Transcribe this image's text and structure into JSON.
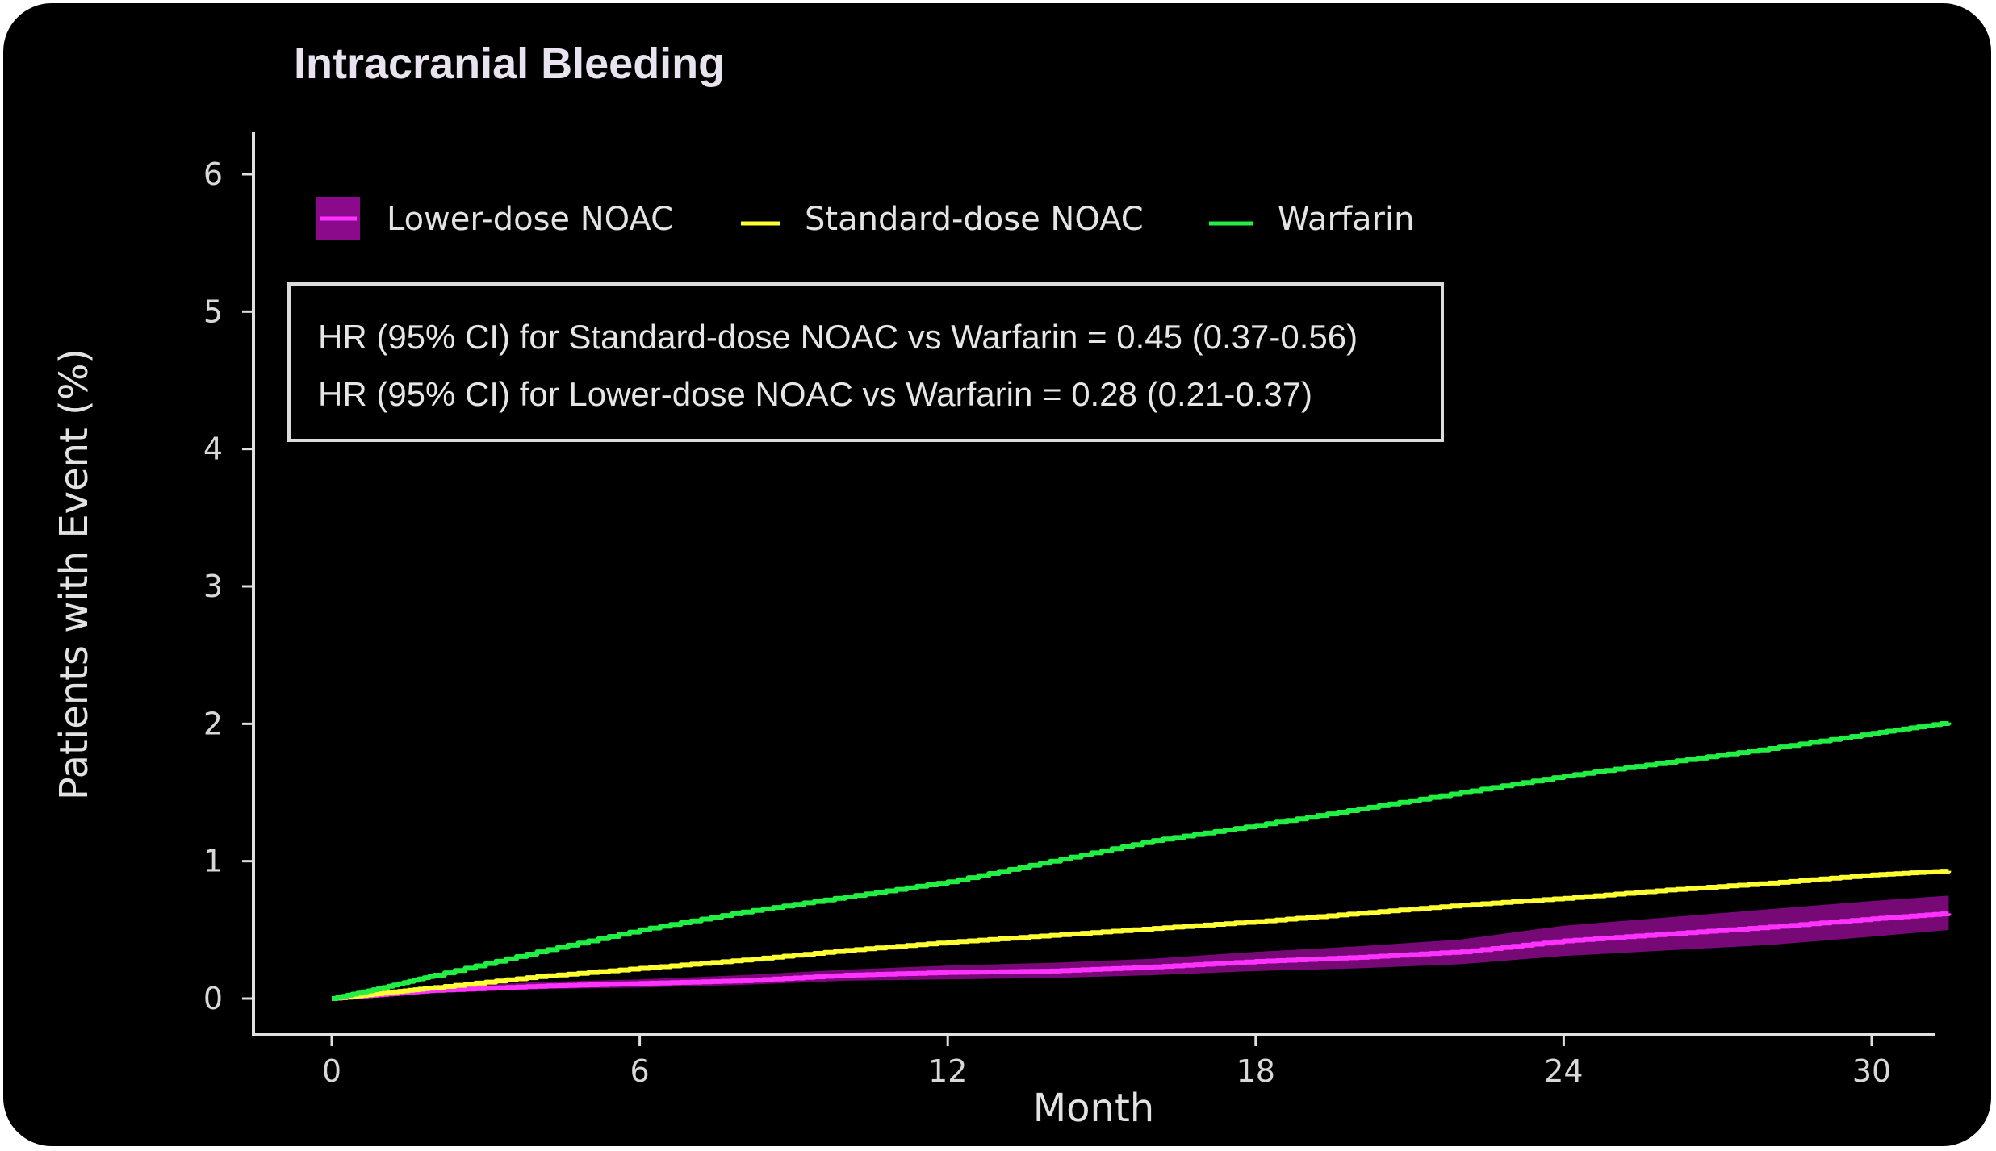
{
  "chart_data": {
    "type": "line",
    "title": "Intracranial Bleeding",
    "xlabel": "Month",
    "ylabel": "Patients with Event (%)",
    "xlim": [
      0,
      31.5
    ],
    "ylim": [
      0,
      6.3
    ],
    "x_ticks": [
      0,
      6,
      12,
      18,
      24,
      30
    ],
    "y_ticks": [
      0,
      1,
      2,
      3,
      4,
      5,
      6
    ],
    "grid": false,
    "legend_position": "top-left",
    "annotations": [
      "HR (95% CI) for Standard-dose NOAC vs Warfarin = 0.45 (0.37-0.56)",
      "HR (95% CI) for Lower-dose NOAC vs Warfarin = 0.28 (0.21-0.37)"
    ],
    "series": [
      {
        "name": "Lower-dose NOAC",
        "color": "#ff33ff",
        "band_color": "#8b0a8b",
        "x": [
          0,
          1,
          2,
          4,
          6,
          8,
          10,
          12,
          14,
          16,
          18,
          20,
          22,
          24,
          26,
          28,
          30,
          31.5
        ],
        "y": [
          0,
          0.03,
          0.06,
          0.09,
          0.11,
          0.13,
          0.17,
          0.19,
          0.2,
          0.23,
          0.27,
          0.3,
          0.34,
          0.42,
          0.47,
          0.52,
          0.58,
          0.62
        ],
        "ci_lower": [
          0,
          0.02,
          0.04,
          0.07,
          0.08,
          0.1,
          0.13,
          0.14,
          0.15,
          0.17,
          0.2,
          0.22,
          0.25,
          0.31,
          0.35,
          0.39,
          0.45,
          0.5
        ],
        "ci_upper": [
          0,
          0.05,
          0.08,
          0.12,
          0.14,
          0.17,
          0.21,
          0.24,
          0.26,
          0.29,
          0.34,
          0.38,
          0.43,
          0.53,
          0.59,
          0.65,
          0.71,
          0.75
        ]
      },
      {
        "name": "Standard-dose NOAC",
        "color": "#ffff33",
        "x": [
          0,
          1,
          2,
          4,
          6,
          8,
          10,
          12,
          14,
          16,
          18,
          20,
          22,
          24,
          26,
          28,
          30,
          31.5
        ],
        "y": [
          0,
          0.04,
          0.08,
          0.16,
          0.22,
          0.28,
          0.35,
          0.41,
          0.46,
          0.51,
          0.56,
          0.62,
          0.68,
          0.73,
          0.79,
          0.84,
          0.9,
          0.93
        ]
      },
      {
        "name": "Warfarin",
        "color": "#22ee44",
        "x": [
          0,
          1,
          2,
          4,
          6,
          8,
          10,
          12,
          14,
          16,
          18,
          20,
          22,
          24,
          26,
          28,
          30,
          31.5
        ],
        "y": [
          0,
          0.08,
          0.17,
          0.34,
          0.5,
          0.63,
          0.74,
          0.85,
          1.0,
          1.15,
          1.26,
          1.38,
          1.5,
          1.62,
          1.72,
          1.82,
          1.93,
          2.01
        ]
      }
    ]
  }
}
